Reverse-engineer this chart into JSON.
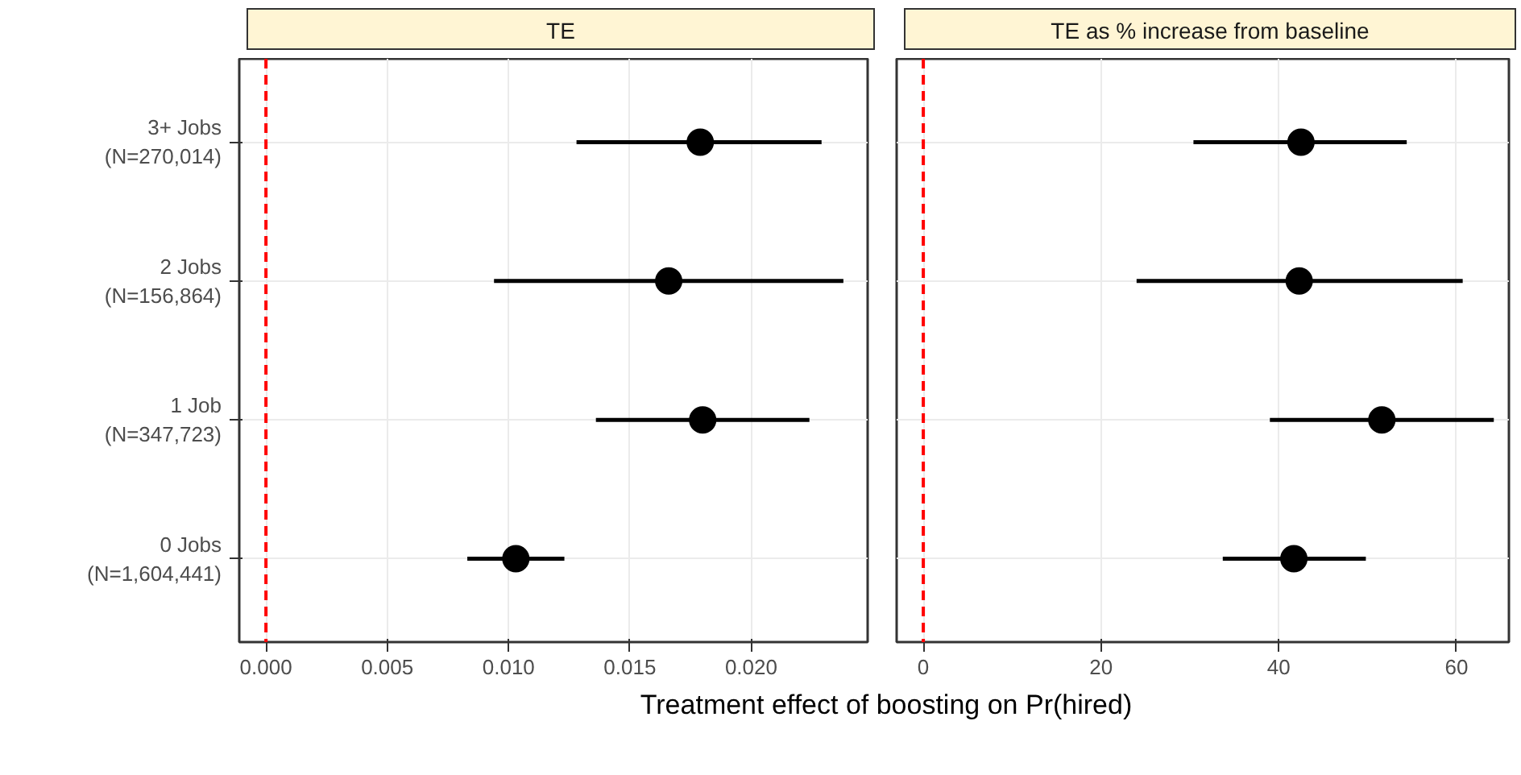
{
  "chart_data": [
    {
      "type": "scatter",
      "title": "TE",
      "xlabel": "Treatment effect of boosting on Pr(hired)",
      "categories": [
        "3+ Jobs\n(N=270,014)",
        "2 Jobs\n(N=156,864)",
        "1 Job\n(N=347,723)",
        "0 Jobs\n(N=1,604,441)"
      ],
      "orientation": "horizontal",
      "series": [
        {
          "color": "#000000",
          "values": [
            0.0179,
            0.0166,
            0.018,
            0.0103
          ],
          "errors": [
            [
              0.0128,
              0.0229
            ],
            [
              0.0094,
              0.0238
            ],
            [
              0.0136,
              0.0224
            ],
            [
              0.0083,
              0.0123
            ]
          ]
        }
      ],
      "xlim": [
        -0.0011,
        0.0248
      ],
      "xticks": [
        {
          "value": 0,
          "label": "0.000"
        },
        0.005,
        {
          "value": 0.01,
          "label": "0.010"
        },
        0.015,
        {
          "value": 0.02,
          "label": "0.020"
        }
      ],
      "ref_lines": [
        {
          "axis": "x",
          "value": 0,
          "color": "#ff0000",
          "line_style": "dashed"
        }
      ],
      "grid": true,
      "marker": "circle"
    },
    {
      "type": "scatter",
      "title": "TE as % increase from baseline",
      "orientation": "horizontal",
      "series": [
        {
          "color": "#000000",
          "values": [
            42.5,
            42.3,
            51.6,
            41.7
          ],
          "errors": [
            [
              30.4,
              54.4
            ],
            [
              24.0,
              60.7
            ],
            [
              39.0,
              64.2
            ],
            [
              33.7,
              49.8
            ]
          ]
        }
      ],
      "xlim": [
        -3.0,
        65.9
      ],
      "xticks": [
        0,
        20,
        40,
        60
      ],
      "ref_lines": [
        {
          "axis": "x",
          "value": 0,
          "color": "#ff0000",
          "line_style": "dashed"
        }
      ],
      "grid": true,
      "marker": "circle",
      "tick_labels": "x"
    }
  ]
}
